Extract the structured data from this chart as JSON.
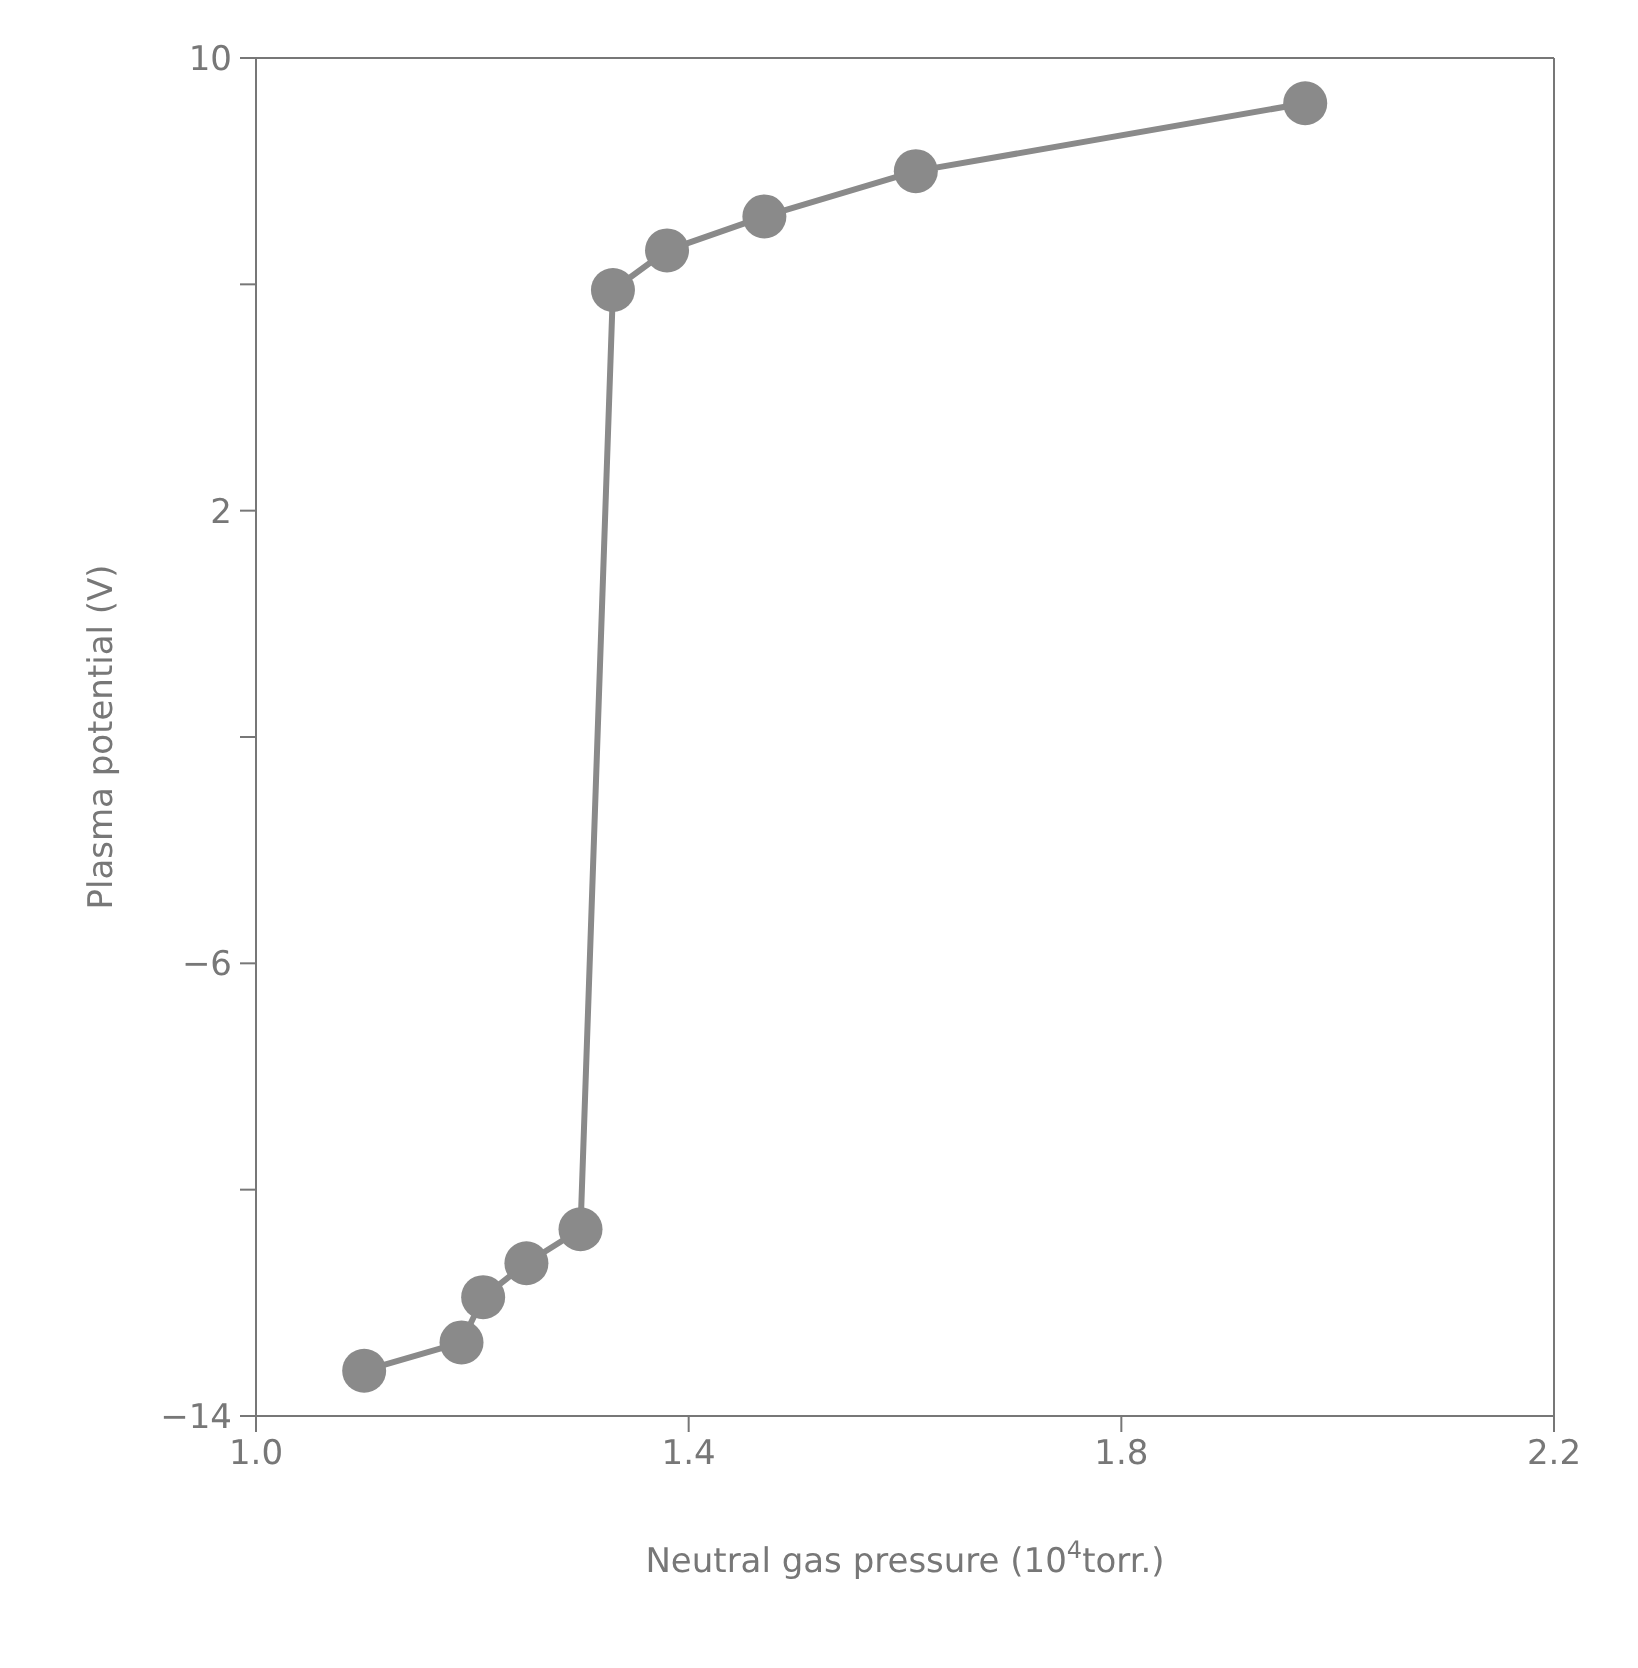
{
  "chart_data": {
    "type": "line",
    "xlabel": "Neutral gas pressure (10$^{4}$torr.)",
    "ylabel": "Plasma potential (V)",
    "x": [
      1.1,
      1.19,
      1.21,
      1.25,
      1.3,
      1.33,
      1.38,
      1.47,
      1.61,
      1.97
    ],
    "series": [
      {
        "color": "#8a8a8a",
        "values": [
          -13.2,
          -12.7,
          -11.9,
          -11.3,
          -10.7,
          5.9,
          6.6,
          7.2,
          8.0,
          9.2
        ]
      }
    ],
    "xlim": [
      1.0,
      2.2
    ],
    "ylim": [
      -14,
      10
    ],
    "xticks": [
      {
        "value": 1.0,
        "label": "1.0"
      },
      1.4,
      1.8,
      2.2
    ],
    "yticks": [
      {
        "value": -14,
        "label": "−14"
      },
      {
        "value": -10,
        "label": null
      },
      {
        "value": -6,
        "label": "−6"
      },
      {
        "value": -2,
        "label": null
      },
      2,
      {
        "value": 6,
        "label": null
      },
      10
    ],
    "grid": false,
    "legend": false,
    "marker": "circle",
    "line_style": "solid"
  }
}
